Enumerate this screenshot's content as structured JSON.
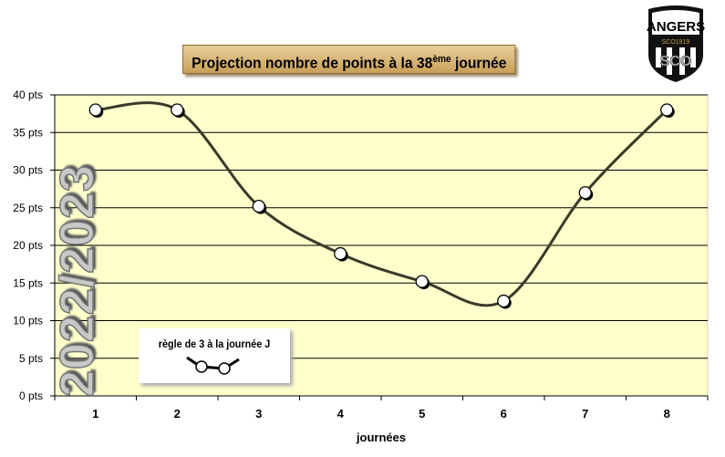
{
  "chart_data": {
    "type": "line",
    "title_main": "Projection nombre de points à la  38",
    "title_sup": "ème",
    "title_end": " journée",
    "xlabel": "journées",
    "ylabel": "",
    "categories": [
      "1",
      "2",
      "3",
      "4",
      "5",
      "6",
      "7",
      "8"
    ],
    "series": [
      {
        "values": [
          38,
          38,
          25.2,
          18.9,
          15.2,
          12.6,
          27,
          38
        ]
      }
    ],
    "ylim": [
      0,
      40
    ],
    "yticks": [
      0,
      5,
      10,
      15,
      20,
      25,
      30,
      35,
      40
    ],
    "ytick_suffix": " pts",
    "grid": true,
    "smooth": true,
    "legend_position": "bottom-left",
    "legend_label": "règle de 3 à la journée J",
    "colors": {
      "plot_bg": "#ffffcc",
      "line": "#3a3a2a",
      "marker": "#ffffff",
      "grid": "#000000"
    }
  },
  "watermark": "2022/2023",
  "logo": {
    "text": "ANGERS",
    "subtext": "SCO1919",
    "monogram": "SCO"
  }
}
